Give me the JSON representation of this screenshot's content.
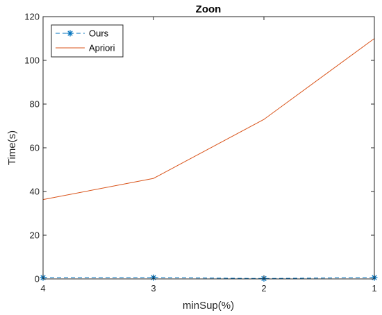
{
  "chart_data": {
    "type": "line",
    "title": "Zoon",
    "xlabel": "minSup(%)",
    "ylabel": "Time(s)",
    "x": [
      4,
      3,
      2,
      1
    ],
    "x_ticks": [
      "4",
      "3",
      "2",
      "1"
    ],
    "x_direction": "reversed",
    "xlim": [
      4,
      1
    ],
    "ylim": [
      0,
      120
    ],
    "y_ticks": [
      "0",
      "20",
      "40",
      "60",
      "80",
      "100",
      "120"
    ],
    "grid": false,
    "legend_position": "top-left",
    "series": [
      {
        "name": "Ours",
        "values": [
          0.6,
          0.6,
          0.2,
          0.6
        ],
        "color": "#0072BD",
        "line_style": "dashed",
        "marker": "asterisk"
      },
      {
        "name": "Apriori",
        "values": [
          36.3,
          46.0,
          73.0,
          110.0
        ],
        "color": "#D95319",
        "line_style": "solid",
        "marker": "none"
      }
    ]
  }
}
